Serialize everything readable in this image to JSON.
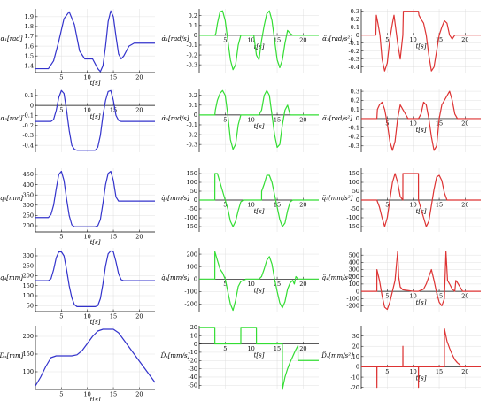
{
  "chart_data": [
    {
      "id": "a1",
      "type": "line",
      "color": "#3333cc",
      "ylabel": "α₁[rad]",
      "xlabel": "t[s]",
      "xlim": [
        0,
        23
      ],
      "ylim": [
        1.33,
        1.98
      ],
      "yticks": [
        1.4,
        1.5,
        1.6,
        1.7,
        1.8,
        1.9
      ],
      "xticks": [
        5,
        10,
        15,
        20
      ],
      "xaxis_at": 1.33,
      "x": [
        0,
        2.5,
        3.5,
        4.5,
        5.5,
        6.5,
        7.5,
        8.5,
        9.5,
        10,
        11,
        12,
        12.5,
        13,
        13.5,
        14,
        14.5,
        15,
        15.5,
        16,
        16.5,
        17,
        17.5,
        18,
        19,
        20,
        23
      ],
      "y": [
        1.37,
        1.37,
        1.45,
        1.65,
        1.88,
        1.95,
        1.82,
        1.55,
        1.47,
        1.47,
        1.47,
        1.37,
        1.34,
        1.4,
        1.6,
        1.85,
        1.96,
        1.9,
        1.7,
        1.52,
        1.47,
        1.5,
        1.55,
        1.6,
        1.63,
        1.63,
        1.63
      ]
    },
    {
      "id": "a1d",
      "type": "line",
      "color": "#33dd33",
      "ylabel": "α̇₁[rad/s]",
      "xlabel": "t[s]",
      "xlim": [
        0,
        23
      ],
      "ylim": [
        -0.38,
        0.27
      ],
      "yticks": [
        -0.3,
        -0.2,
        -0.1,
        0,
        0.1,
        0.2
      ],
      "xticks": [
        5,
        10,
        15,
        20
      ],
      "xaxis_at": 0,
      "x": [
        0,
        3,
        3.2,
        3.5,
        4,
        4.5,
        5,
        5.5,
        6,
        6.5,
        7,
        7.5,
        8,
        8.5,
        9,
        9.5,
        10,
        10.5,
        11,
        11.5,
        12,
        12.5,
        13,
        13.5,
        14,
        14.5,
        15,
        15.5,
        16,
        16.5,
        17,
        17.5,
        18,
        18.5,
        19,
        20,
        23
      ],
      "y": [
        0,
        0,
        0.02,
        0.12,
        0.24,
        0.25,
        0.15,
        -0.05,
        -0.25,
        -0.35,
        -0.3,
        -0.1,
        0,
        0,
        0,
        0,
        0,
        0,
        -0.2,
        -0.25,
        -0.05,
        0.1,
        0.22,
        0.25,
        0.15,
        -0.05,
        -0.25,
        -0.33,
        -0.25,
        -0.08,
        0.05,
        0.02,
        0,
        0,
        0,
        0,
        0
      ]
    },
    {
      "id": "a1dd",
      "type": "line",
      "color": "#dd3333",
      "ylabel": "α̈₁[rad/s²]",
      "xlabel": "t[s]",
      "xlim": [
        0,
        23
      ],
      "ylim": [
        -0.47,
        0.33
      ],
      "yticks": [
        -0.4,
        -0.3,
        -0.2,
        -0.1,
        0,
        0.1,
        0.2,
        0.3
      ],
      "xticks": [
        5,
        10,
        15,
        20
      ],
      "xaxis_at": 0,
      "x": [
        0,
        2.8,
        2.9,
        3.2,
        3.6,
        4,
        4.5,
        5,
        5.5,
        6,
        6.3,
        6.6,
        7,
        7.5,
        8,
        8.1,
        9,
        10,
        11,
        11.1,
        11.5,
        12,
        12.5,
        13,
        13.5,
        14,
        14.5,
        15,
        15.5,
        16,
        16.5,
        17,
        17.5,
        18,
        18.5,
        19,
        23
      ],
      "y": [
        0,
        0,
        0.25,
        0.15,
        0,
        -0.3,
        -0.45,
        -0.35,
        -0.05,
        0.15,
        0.25,
        0.1,
        -0.1,
        -0.3,
        0,
        0.3,
        0.3,
        0.3,
        0.3,
        0.25,
        0.2,
        0.15,
        0,
        -0.25,
        -0.45,
        -0.4,
        -0.2,
        0,
        0.1,
        0.18,
        0.15,
        0,
        -0.05,
        0,
        0,
        0,
        0
      ]
    },
    {
      "id": "a5",
      "type": "line",
      "color": "#3333cc",
      "ylabel": "α₅[rad]",
      "xlabel": "t[s]",
      "xlim": [
        0,
        23
      ],
      "ylim": [
        -0.47,
        0.17
      ],
      "yticks": [
        -0.4,
        -0.3,
        -0.2,
        -0.1,
        0,
        0.1
      ],
      "xticks": [
        5,
        10,
        15,
        20
      ],
      "xaxis_at": 0,
      "x": [
        0,
        3,
        3.5,
        4,
        4.5,
        5,
        5.5,
        6,
        6.5,
        7,
        7.5,
        8,
        9,
        10,
        11,
        11.5,
        12,
        12.5,
        13,
        13.5,
        14,
        14.5,
        15,
        15.5,
        16,
        16.5,
        17,
        17.5,
        18,
        19,
        23
      ],
      "y": [
        -0.16,
        -0.16,
        -0.14,
        -0.05,
        0.08,
        0.15,
        0.12,
        -0.05,
        -0.25,
        -0.4,
        -0.44,
        -0.45,
        -0.45,
        -0.45,
        -0.45,
        -0.45,
        -0.42,
        -0.3,
        -0.1,
        0.05,
        0.14,
        0.15,
        0.05,
        -0.1,
        -0.15,
        -0.16,
        -0.16,
        -0.16,
        -0.16,
        -0.16,
        -0.16
      ]
    },
    {
      "id": "a5d",
      "type": "line",
      "color": "#33dd33",
      "ylabel": "α̇₅[rad/s]",
      "xlabel": "t[s]",
      "xlim": [
        0,
        23
      ],
      "ylim": [
        -0.38,
        0.27
      ],
      "yticks": [
        -0.3,
        -0.2,
        -0.1,
        0,
        0.1,
        0.2
      ],
      "xticks": [
        5,
        10,
        15,
        20
      ],
      "xaxis_at": 0,
      "x": [
        0,
        3,
        3.1,
        3.5,
        4,
        4.5,
        5,
        5.5,
        6,
        6.5,
        7,
        7.5,
        8,
        8.5,
        9,
        10,
        11,
        11.5,
        12,
        12.5,
        13,
        13.5,
        14,
        14.5,
        15,
        15.5,
        16,
        16.5,
        17,
        17.5,
        18,
        19,
        23
      ],
      "y": [
        0,
        0,
        0.05,
        0.15,
        0.22,
        0.25,
        0.2,
        0,
        -0.25,
        -0.35,
        -0.3,
        -0.1,
        0,
        0,
        0,
        0,
        0,
        0,
        0.05,
        0.2,
        0.25,
        0.2,
        0,
        -0.2,
        -0.33,
        -0.3,
        -0.1,
        0.05,
        0.1,
        0,
        0,
        0,
        0
      ]
    },
    {
      "id": "a5dd",
      "type": "line",
      "color": "#dd3333",
      "ylabel": "α̈₅[rad/s²]",
      "xlabel": "t[s]",
      "xlim": [
        0,
        23
      ],
      "ylim": [
        -0.37,
        0.33
      ],
      "yticks": [
        -0.3,
        -0.2,
        -0.1,
        0,
        0.1,
        0.2,
        0.3
      ],
      "xticks": [
        5,
        10,
        15,
        20
      ],
      "xaxis_at": 0,
      "x": [
        0,
        3,
        3.1,
        3.5,
        4,
        4.5,
        5,
        5.5,
        6,
        6.5,
        7,
        7.5,
        8,
        9,
        10,
        11,
        11.5,
        12,
        12.5,
        13,
        13.5,
        14,
        14.5,
        15,
        15.5,
        16,
        16.5,
        17,
        17.5,
        18,
        18.5,
        19,
        23
      ],
      "y": [
        0,
        0,
        0.1,
        0.15,
        0.18,
        0.1,
        -0.05,
        -0.25,
        -0.35,
        -0.25,
        0,
        0.15,
        0.1,
        0,
        0,
        0,
        0.05,
        0.18,
        0.15,
        0,
        -0.2,
        -0.35,
        -0.3,
        0,
        0.15,
        0.2,
        0.25,
        0.3,
        0.2,
        0.05,
        0,
        0,
        0
      ]
    },
    {
      "id": "q5",
      "type": "line",
      "color": "#3333cc",
      "ylabel": "q₅[mm]",
      "xlabel": "t[s]",
      "xlim": [
        0,
        23
      ],
      "ylim": [
        170,
        480
      ],
      "yticks": [
        200,
        250,
        300,
        350,
        400,
        450
      ],
      "xticks": [
        5,
        10,
        15,
        20
      ],
      "xaxis_at": 170,
      "x": [
        0,
        2.5,
        3,
        3.5,
        4,
        4.5,
        5,
        5.5,
        6,
        6.5,
        7,
        7.5,
        8,
        9,
        10,
        11,
        11.5,
        12,
        12.5,
        13,
        13.5,
        14,
        14.5,
        15,
        15.5,
        16,
        16.5,
        17,
        17.5,
        18,
        19,
        23
      ],
      "y": [
        240,
        240,
        255,
        300,
        380,
        450,
        465,
        420,
        330,
        250,
        205,
        195,
        195,
        195,
        195,
        195,
        195,
        200,
        230,
        310,
        400,
        455,
        465,
        420,
        340,
        320,
        320,
        320,
        320,
        320,
        320,
        320
      ]
    },
    {
      "id": "q5d",
      "type": "line",
      "color": "#33dd33",
      "ylabel": "q̇₅[mm/s]",
      "xlabel": "t[s]",
      "xlim": [
        0,
        23
      ],
      "ylim": [
        -180,
        180
      ],
      "yticks": [
        -150,
        -100,
        -50,
        0,
        50,
        100,
        150
      ],
      "xticks": [
        5,
        10,
        15,
        20
      ],
      "xaxis_at": 0,
      "x": [
        0,
        3,
        3.01,
        3.5,
        4,
        4.5,
        5,
        5.5,
        6,
        6.5,
        7,
        7.5,
        8,
        8.5,
        9,
        9.5,
        10,
        10.5,
        11,
        11.5,
        12,
        12.01,
        12.5,
        13,
        13.5,
        14,
        14.5,
        15,
        15.5,
        16,
        16.5,
        17,
        17.5,
        18,
        18.5,
        19,
        20,
        23
      ],
      "y": [
        0,
        0,
        150,
        150,
        100,
        50,
        0,
        -50,
        -120,
        -150,
        -120,
        -60,
        -10,
        0,
        0,
        0,
        0,
        0,
        0,
        0,
        0,
        50,
        90,
        140,
        140,
        100,
        30,
        -40,
        -110,
        -150,
        -130,
        -60,
        -10,
        0,
        0,
        0,
        0,
        0
      ]
    },
    {
      "id": "q5dd",
      "type": "line",
      "color": "#dd3333",
      "ylabel": "q̈₅[mm/s²]",
      "xlabel": "t[s]",
      "xlim": [
        0,
        23
      ],
      "ylim": [
        -180,
        180
      ],
      "yticks": [
        -150,
        -100,
        -50,
        0,
        50,
        100,
        150
      ],
      "xticks": [
        5,
        10,
        15,
        20
      ],
      "xaxis_at": 0,
      "x": [
        0,
        3,
        3.5,
        4,
        4.5,
        5,
        5.5,
        6,
        6.5,
        7,
        7.5,
        8,
        8.01,
        9,
        10,
        11,
        11.01,
        11.5,
        12,
        12.5,
        13,
        13.5,
        14,
        14.5,
        15,
        15.5,
        16,
        16.5,
        17,
        17.5,
        18,
        18.5,
        19,
        23
      ],
      "y": [
        0,
        0,
        -40,
        -100,
        -150,
        -100,
        0,
        100,
        150,
        100,
        20,
        0,
        150,
        150,
        150,
        150,
        0,
        -50,
        -100,
        -150,
        -120,
        -30,
        60,
        130,
        140,
        110,
        40,
        0,
        0,
        0,
        0,
        0,
        0,
        0
      ]
    },
    {
      "id": "q4",
      "type": "line",
      "color": "#3333cc",
      "ylabel": "q₄[mm]",
      "xlabel": "t[s]",
      "xlim": [
        0,
        23
      ],
      "ylim": [
        20,
        340
      ],
      "yticks": [
        50,
        100,
        150,
        200,
        250,
        300
      ],
      "xticks": [
        5,
        10,
        15,
        20
      ],
      "xaxis_at": 20,
      "x": [
        0,
        2.5,
        3,
        3.5,
        4,
        4.5,
        5,
        5.5,
        6,
        6.5,
        7,
        7.5,
        8,
        9,
        10,
        11,
        11.5,
        12,
        12.5,
        13,
        13.5,
        14,
        14.5,
        15,
        15.5,
        16,
        16.5,
        17,
        17.5,
        18,
        19,
        23
      ],
      "y": [
        175,
        175,
        185,
        230,
        290,
        320,
        320,
        300,
        230,
        150,
        90,
        55,
        45,
        45,
        45,
        45,
        45,
        50,
        85,
        160,
        250,
        310,
        325,
        320,
        270,
        210,
        180,
        175,
        175,
        175,
        175,
        175
      ]
    },
    {
      "id": "q4d",
      "type": "line",
      "color": "#33dd33",
      "ylabel": "q̇₄[mm/s]",
      "xlabel": "t[s]",
      "xlim": [
        0,
        23
      ],
      "ylim": [
        -260,
        250
      ],
      "yticks": [
        -200,
        -100,
        0,
        100,
        200
      ],
      "xticks": [
        5,
        10,
        15,
        20
      ],
      "xaxis_at": 0,
      "x": [
        0,
        3,
        3.01,
        3.5,
        4,
        4.5,
        5,
        5.5,
        6,
        6.5,
        7,
        7.5,
        8,
        8.5,
        9,
        10,
        11,
        11.5,
        12,
        12.5,
        13,
        13.5,
        14,
        14.5,
        15,
        15.5,
        16,
        16.5,
        17,
        17.5,
        18,
        18.3,
        18.6,
        19,
        23
      ],
      "y": [
        0,
        0,
        220,
        150,
        80,
        50,
        0,
        -100,
        -200,
        -250,
        -170,
        -60,
        -20,
        -10,
        0,
        0,
        0,
        0,
        20,
        80,
        150,
        180,
        120,
        0,
        -100,
        -190,
        -230,
        -180,
        -80,
        -30,
        -10,
        -40,
        20,
        0,
        0
      ]
    },
    {
      "id": "q4dd",
      "type": "line",
      "color": "#dd3333",
      "ylabel": "q̈₄[mm/s²]",
      "xlabel": "t[s]",
      "xlim": [
        0,
        23
      ],
      "ylim": [
        -280,
        600
      ],
      "yticks": [
        -200,
        -100,
        0,
        100,
        200,
        300,
        400,
        500
      ],
      "xticks": [
        5,
        10,
        15,
        20
      ],
      "xaxis_at": 0,
      "x": [
        0,
        3,
        3.01,
        3.5,
        4,
        4.5,
        5,
        5.5,
        6,
        6.5,
        7,
        7.2,
        7.5,
        8,
        9,
        10,
        11,
        12,
        12.5,
        13,
        13.5,
        14,
        14.5,
        15,
        15.5,
        16,
        16.3,
        16.6,
        17,
        17.5,
        18,
        18.2,
        18.5,
        19,
        19.5,
        20,
        23
      ],
      "y": [
        0,
        0,
        300,
        150,
        -60,
        -220,
        -250,
        -150,
        0,
        150,
        550,
        200,
        60,
        20,
        10,
        0,
        0,
        30,
        100,
        200,
        300,
        150,
        -20,
        -150,
        -200,
        -100,
        550,
        150,
        100,
        30,
        0,
        150,
        120,
        60,
        0,
        0,
        0
      ]
    },
    {
      "id": "d",
      "type": "line",
      "color": "#3333cc",
      "ylabel": "Dₓ[mm]",
      "xlabel": "t[s]",
      "xlim": [
        0,
        23
      ],
      "ylim": [
        50,
        230
      ],
      "yticks": [
        100,
        150,
        200
      ],
      "xticks": [
        5,
        10,
        15,
        20
      ],
      "xaxis_at": 50,
      "x": [
        0,
        1,
        2,
        3,
        4,
        5,
        6,
        7,
        8,
        9,
        10,
        11,
        12,
        13,
        14,
        15,
        16,
        17,
        18,
        19,
        20,
        21,
        22,
        23
      ],
      "y": [
        60,
        85,
        115,
        140,
        145,
        145,
        145,
        145,
        148,
        160,
        180,
        200,
        215,
        220,
        220,
        220,
        210,
        190,
        170,
        150,
        130,
        110,
        90,
        70
      ]
    },
    {
      "id": "dd",
      "type": "line",
      "color": "#33dd33",
      "ylabel": "Ḋₓ[mm/s]",
      "xlabel": "t[s]",
      "xlim": [
        0,
        23
      ],
      "ylim": [
        -55,
        22
      ],
      "yticks": [
        -50,
        -40,
        -30,
        -20,
        -10,
        0,
        10,
        20
      ],
      "xticks": [
        5,
        10,
        15,
        20
      ],
      "xaxis_at": 0,
      "x": [
        0,
        3,
        3.01,
        8,
        8.01,
        11,
        11.01,
        16,
        16.01,
        16.5,
        17,
        17.5,
        18,
        18.5,
        19,
        19.01,
        23
      ],
      "y": [
        20,
        20,
        0,
        0,
        20,
        20,
        0,
        0,
        -55,
        -40,
        -30,
        -22,
        -15,
        -8,
        -2,
        -20,
        -20
      ]
    },
    {
      "id": "ddd",
      "type": "line",
      "color": "#dd3333",
      "ylabel": "D̈ₓ[mm/s²]",
      "xlabel": "t[s]",
      "xlim": [
        0,
        23
      ],
      "ylim": [
        -22,
        40
      ],
      "yticks": [
        -20,
        -10,
        0,
        10,
        20,
        30
      ],
      "xticks": [
        5,
        10,
        15,
        20
      ],
      "xaxis_at": 0,
      "x": [
        0,
        3,
        3.01,
        3.02,
        8,
        8.01,
        8.02,
        11,
        11.01,
        11.02,
        16,
        16.01,
        16.5,
        17,
        17.5,
        18,
        18.5,
        19,
        19.01,
        23
      ],
      "y": [
        0,
        0,
        -20,
        0,
        0,
        20,
        0,
        0,
        -20,
        0,
        0,
        37,
        25,
        18,
        12,
        7,
        4,
        2,
        0,
        0
      ]
    }
  ]
}
